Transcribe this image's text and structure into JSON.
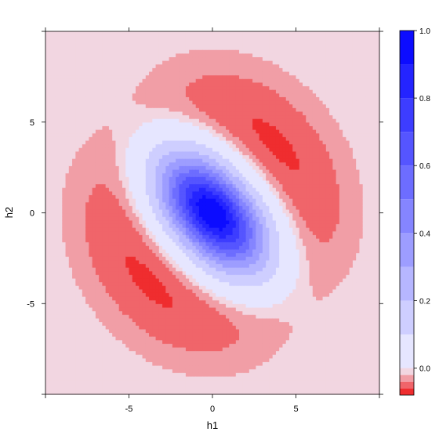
{
  "chart_data": {
    "type": "heatmap",
    "title": "",
    "xlabel": "h1",
    "ylabel": "h2",
    "xlim": [
      -10,
      10
    ],
    "ylim": [
      -10,
      10
    ],
    "x_ticks": [
      -5,
      0,
      5
    ],
    "y_ticks": [
      -5,
      0,
      5
    ],
    "x_tick_labels": [
      "-5",
      "0",
      "5"
    ],
    "y_tick_labels": [
      "-5",
      "0",
      "5"
    ],
    "grid": false,
    "legend": "right colorbar",
    "colorbar": {
      "range": [
        -0.08,
        1.0
      ],
      "ticks": [
        0.0,
        0.2,
        0.4,
        0.6,
        0.8,
        1.0
      ],
      "tick_labels": [
        "0.0",
        "0.2",
        "0.4",
        "0.6",
        "0.8",
        "1.0"
      ],
      "levels": [
        -0.08,
        -0.06,
        -0.04,
        -0.02,
        0.0,
        0.1,
        0.2,
        0.3,
        0.4,
        0.5,
        0.6,
        0.7,
        0.8,
        0.9,
        1.0
      ],
      "colors": {
        "negative": "#ee1111",
        "zero": "#f2f2ff",
        "positive": "#0000ff"
      }
    },
    "surface": {
      "description_points": [
        {
          "h1": 0,
          "h2": 0,
          "value": 1.0
        },
        {
          "h1": 3.5,
          "h2": 3.5,
          "value": -0.07
        },
        {
          "h1": -3.5,
          "h2": -3.5,
          "value": -0.07
        },
        {
          "h1": -9,
          "h2": 9,
          "value": 0.0
        },
        {
          "h1": 9,
          "h2": -9,
          "value": 0.0
        }
      ]
    }
  }
}
